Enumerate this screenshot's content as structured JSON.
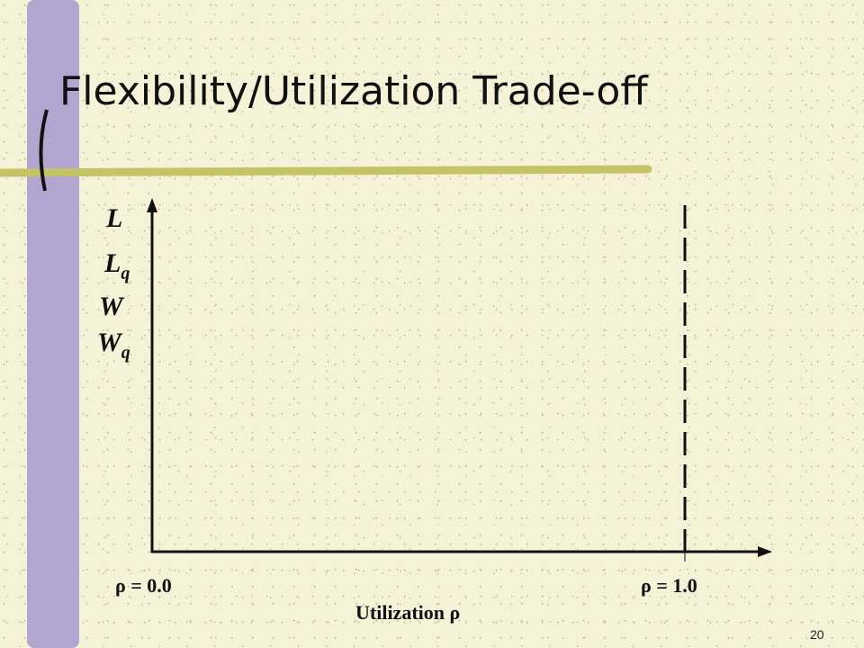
{
  "title": "Flexibility/Utilization Trade-off",
  "y_labels": [
    {
      "base": "L"
    },
    {
      "base": "L",
      "sub": "q"
    },
    {
      "base": "W"
    },
    {
      "base": "W",
      "sub": "q"
    }
  ],
  "x_labels": {
    "left": "ρ = 0.0",
    "right": "ρ = 1.0"
  },
  "x_axis_title": "Utilization ρ",
  "page_number": "20"
}
